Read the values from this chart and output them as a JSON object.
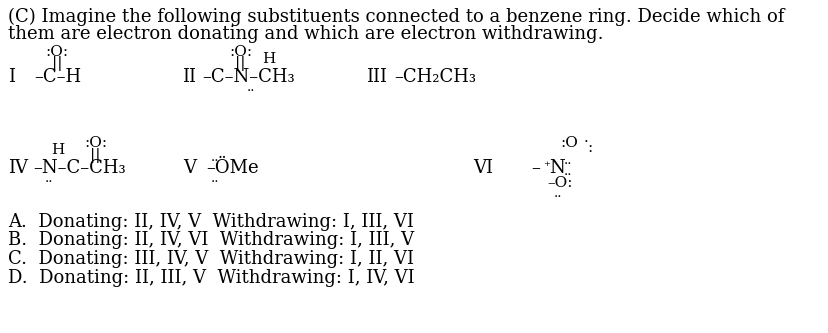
{
  "bg_color": "#ffffff",
  "text_color": "#000000",
  "title_line1": "(C) Imagine the following substituents connected to a benzene ring. Decide which of",
  "title_line2": "them are electron donating and which are electron withdrawing.",
  "answers": [
    "A.  Donating: II, IV, V  Withdrawing: I, III, VI",
    "B.  Donating: II, IV, VI  Withdrawing: I, III, V",
    "C.  Donating: III, IV, V  Withdrawing: I, II, VI",
    "D.  Donating: II, III, V  Withdrawing: I, IV, VI"
  ],
  "main_font_size": 13.0,
  "small_font_size": 11.0,
  "tiny_font_size": 9.5
}
